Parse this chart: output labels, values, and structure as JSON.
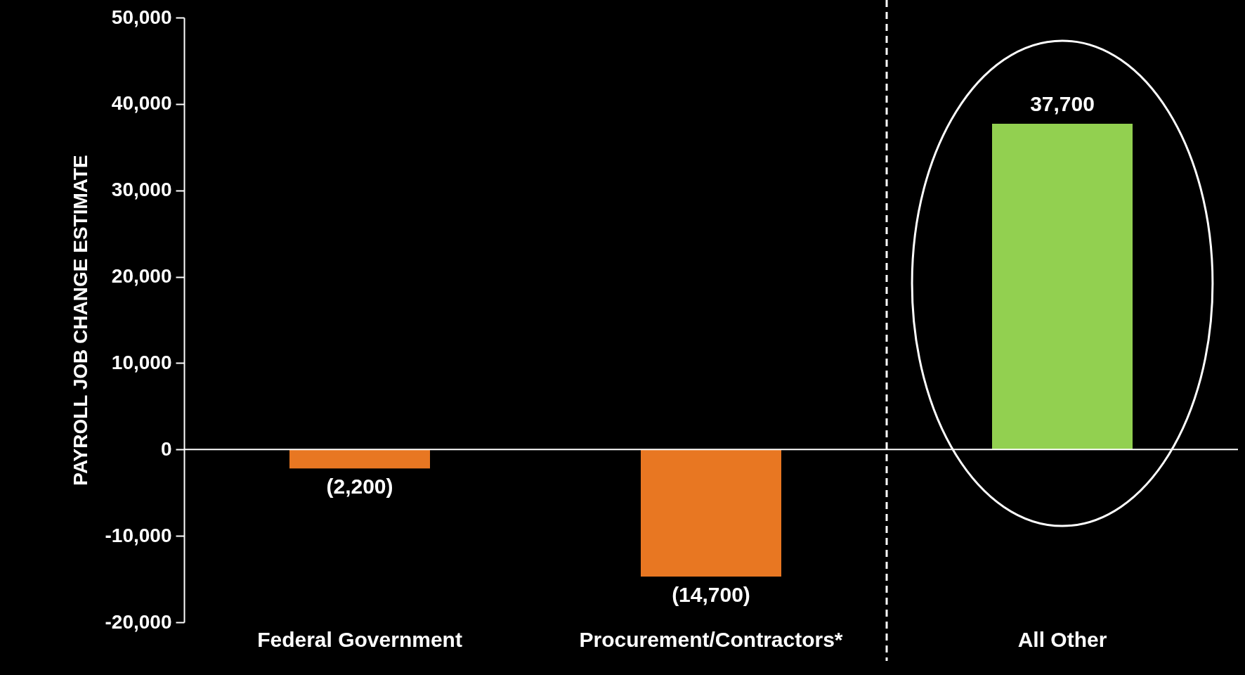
{
  "chart_data": {
    "type": "bar",
    "categories": [
      "Federal Government",
      "Procurement/Contractors*",
      "All Other"
    ],
    "values": [
      -2200,
      -14700,
      37700
    ],
    "colors": [
      "#e87722",
      "#e87722",
      "#92d050"
    ],
    "value_labels": [
      "(2,200)",
      "(14,700)",
      "37,700"
    ],
    "ylabel": "PAYROLL JOB CHANGE ESTIMATE",
    "ylim": [
      -20000,
      50000
    ],
    "yticks": [
      {
        "value": -20000,
        "label": "-20,000"
      },
      {
        "value": -10000,
        "label": "-10,000"
      },
      0,
      {
        "value": 10000,
        "label": "10,000"
      },
      {
        "value": 20000,
        "label": "20,000"
      },
      {
        "value": 30000,
        "label": "30,000"
      },
      {
        "value": 40000,
        "label": "40,000"
      },
      {
        "value": 50000,
        "label": "50,000"
      }
    ],
    "ref_lines": [
      {
        "axis": "x",
        "value": "All Other",
        "line_style": "dashed",
        "color": "#ffffff"
      }
    ],
    "grid": false
  }
}
